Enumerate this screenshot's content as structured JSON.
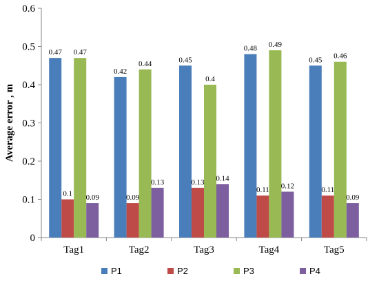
{
  "chart_data": {
    "type": "bar",
    "title": "",
    "xlabel": "",
    "ylabel": "Average error , m",
    "ylim": [
      0,
      0.6
    ],
    "yticks": [
      "0",
      "0.1",
      "0.2",
      "0.3",
      "0.4",
      "0.5",
      "0.6"
    ],
    "grid": false,
    "legend_position": "bottom",
    "categories": [
      "Tag1",
      "Tag2",
      "Tag3",
      "Tag4",
      "Tag5"
    ],
    "series": [
      {
        "name": "P1",
        "color": "#4a7ebb",
        "values": [
          0.47,
          0.42,
          0.45,
          0.48,
          0.45
        ],
        "labels": [
          "0.47",
          "0.42",
          "0.45",
          "0.48",
          "0.45"
        ]
      },
      {
        "name": "P2",
        "color": "#be4b48",
        "values": [
          0.1,
          0.09,
          0.13,
          0.11,
          0.11
        ],
        "labels": [
          "0.1",
          "0.09",
          "0.13",
          "0.11",
          "0.11"
        ]
      },
      {
        "name": "P3",
        "color": "#98b954",
        "values": [
          0.47,
          0.44,
          0.4,
          0.49,
          0.46
        ],
        "labels": [
          "0.47",
          "0.44",
          "0.4",
          "0.49",
          "0.46"
        ]
      },
      {
        "name": "P4",
        "color": "#7d5fa0",
        "values": [
          0.09,
          0.13,
          0.14,
          0.12,
          0.09
        ],
        "labels": [
          "0.09",
          "0.13",
          "0.14",
          "0.12",
          "0.09"
        ]
      }
    ]
  }
}
